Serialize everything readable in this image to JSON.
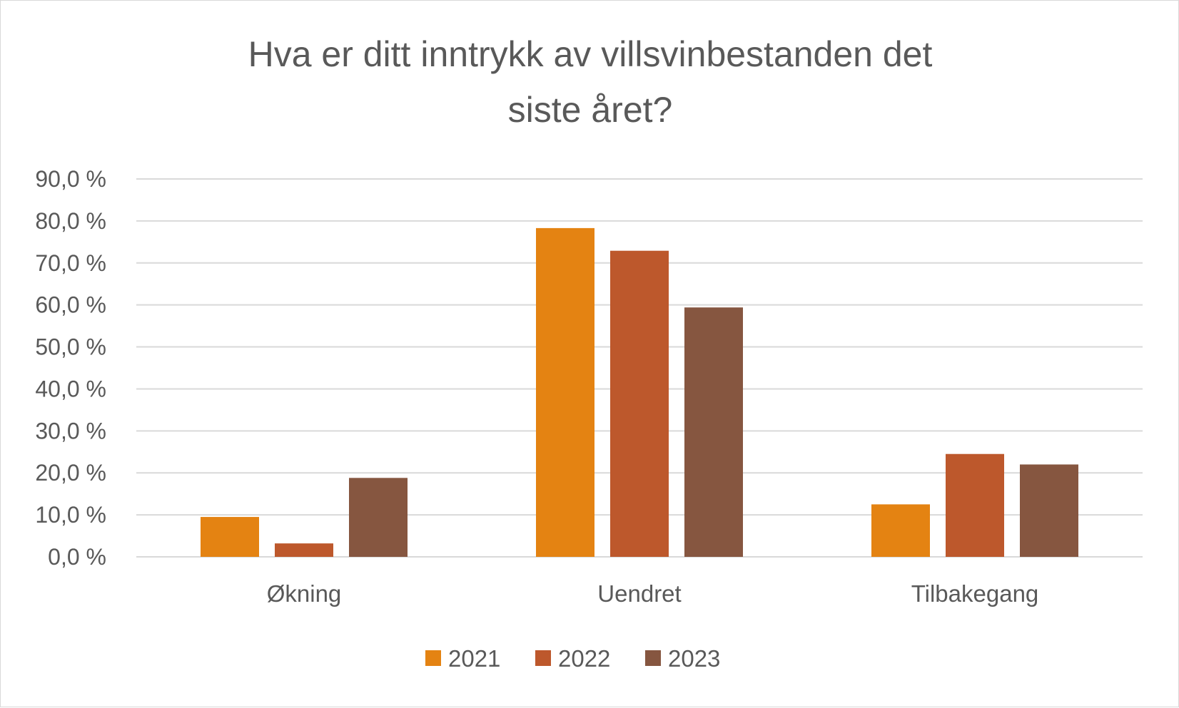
{
  "chart_data": {
    "type": "bar",
    "title_lines": [
      "Hva er ditt inntrykk av villsvinbestanden det",
      "siste året?"
    ],
    "categories": [
      "Økning",
      "Uendret",
      "Tilbakegang"
    ],
    "series": [
      {
        "name": "2021",
        "color": "#E48312",
        "values": [
          9.5,
          78.3,
          12.5
        ]
      },
      {
        "name": "2022",
        "color": "#BD582C",
        "values": [
          3.2,
          72.9,
          24.5
        ]
      },
      {
        "name": "2023",
        "color": "#865640",
        "values": [
          18.8,
          59.4,
          22.0
        ]
      }
    ],
    "yticks": [
      "0,0 %",
      "10,0 %",
      "20,0 %",
      "30,0 %",
      "40,0 %",
      "50,0 %",
      "60,0 %",
      "70,0 %",
      "80,0 %",
      "90,0 %"
    ],
    "ylim": [
      0,
      90
    ],
    "grid": true,
    "legend_position": "bottom"
  }
}
